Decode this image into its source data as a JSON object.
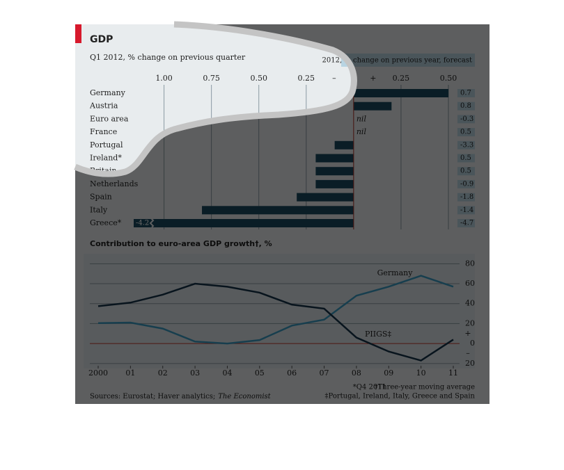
{
  "chart_data": [
    {
      "type": "bar",
      "orientation": "horizontal",
      "title": "GDP",
      "subtitle": "Q1 2012, % change on previous quarter",
      "categories": [
        "Germany",
        "Austria",
        "Euro area",
        "France",
        "Portugal",
        "Ireland*",
        "Britain",
        "Netherlands",
        "Spain",
        "Italy",
        "Greece*"
      ],
      "values": [
        0.5,
        0.2,
        0,
        0,
        -0.1,
        -0.2,
        -0.2,
        -0.2,
        -0.3,
        -0.8,
        -4.2
      ],
      "value_labels": [
        null,
        null,
        "nil",
        "nil",
        null,
        null,
        null,
        null,
        null,
        null,
        "-4.2"
      ],
      "color": "#1b4a60",
      "zero_line_color": "#c0392b",
      "xlim": [
        -1.16,
        0.5
      ],
      "xticks": [
        {
          "value": -1,
          "label": "1.00"
        },
        {
          "value": -0.75,
          "label": "0.75"
        },
        {
          "value": -0.5,
          "label": "0.50"
        },
        {
          "value": -0.25,
          "label": "0.25"
        },
        0,
        0.25,
        {
          "value": 0.5,
          "label": "0.50"
        }
      ],
      "sign_labels": [
        "–",
        "+"
      ],
      "forecast": {
        "title": "2012, % change on previous year, forecast",
        "values": [
          0.7,
          0.8,
          -0.3,
          0.5,
          -3.3,
          0.5,
          0.5,
          -0.9,
          -1.8,
          -1.4,
          -4.7
        ]
      }
    },
    {
      "type": "line",
      "title": "Contribution to euro-area GDP growth†, %",
      "categories": [
        "2000",
        "01",
        "02",
        "03",
        "04",
        "05",
        "06",
        "07",
        "08",
        "09",
        "10",
        "11"
      ],
      "series": [
        {
          "name": "Germany",
          "color": "#3a9cc2",
          "values": [
            20.5,
            21,
            15,
            2,
            0,
            3.5,
            18,
            24,
            48,
            57,
            68,
            57
          ]
        },
        {
          "name": "PIIGS‡",
          "color": "#14324a",
          "values": [
            37.5,
            41,
            49,
            60,
            57,
            51,
            39,
            35,
            6,
            -8,
            -17,
            4
          ]
        }
      ],
      "ylim": [
        -25,
        90
      ],
      "yticks": [
        {
          "value": -20,
          "label": "20"
        },
        0,
        20,
        40,
        60,
        80
      ],
      "sign_labels": [
        "+",
        "–"
      ],
      "zero_line_color": "#c0392b"
    }
  ],
  "footnotes": [
    "*Q4 2011",
    "†Three-year moving average",
    "‡Portugal, Ireland, Italy, Greece and Spain"
  ],
  "source": "Sources: Eurostat; Haver analytics;",
  "source_italic": "The Economist"
}
